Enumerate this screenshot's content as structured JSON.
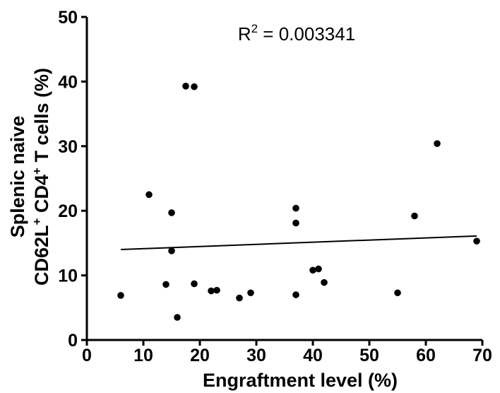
{
  "chart_data": {
    "type": "scatter",
    "title": "",
    "annotation": {
      "text": "R",
      "sup": "2",
      "rest": " = 0.003341"
    },
    "xlabel": "Engraftment level (%)",
    "ylabel_line1": "Splenic naive",
    "ylabel_line2_parts": [
      "CD62L",
      "+",
      " CD4",
      "+",
      " T cells (%)"
    ],
    "xlim": [
      0,
      70
    ],
    "ylim": [
      0,
      50
    ],
    "xticks": [
      "0",
      "10",
      "20",
      "30",
      "40",
      "50",
      "60",
      "70"
    ],
    "yticks": [
      "0",
      "10",
      "20",
      "30",
      "40",
      "50"
    ],
    "grid": false,
    "points": [
      {
        "x": 6,
        "y": 6.9
      },
      {
        "x": 11,
        "y": 22.5
      },
      {
        "x": 14,
        "y": 8.6
      },
      {
        "x": 15,
        "y": 19.7
      },
      {
        "x": 15,
        "y": 13.8
      },
      {
        "x": 16,
        "y": 3.5
      },
      {
        "x": 17.5,
        "y": 39.3
      },
      {
        "x": 19,
        "y": 39.2
      },
      {
        "x": 19,
        "y": 8.7
      },
      {
        "x": 22,
        "y": 7.6
      },
      {
        "x": 23,
        "y": 7.7
      },
      {
        "x": 27,
        "y": 6.5
      },
      {
        "x": 29,
        "y": 7.3
      },
      {
        "x": 37,
        "y": 20.4
      },
      {
        "x": 37,
        "y": 18.1
      },
      {
        "x": 37,
        "y": 7.0
      },
      {
        "x": 40,
        "y": 10.8
      },
      {
        "x": 41,
        "y": 11.0
      },
      {
        "x": 42,
        "y": 8.9
      },
      {
        "x": 55,
        "y": 7.3
      },
      {
        "x": 58,
        "y": 19.2
      },
      {
        "x": 62,
        "y": 30.4
      },
      {
        "x": 69,
        "y": 15.3
      }
    ],
    "fit_line": {
      "x": [
        6,
        69
      ],
      "y": [
        14.0,
        16.1
      ]
    },
    "colors": {
      "points": "#000000",
      "line": "#000000",
      "axes": "#000000"
    }
  }
}
